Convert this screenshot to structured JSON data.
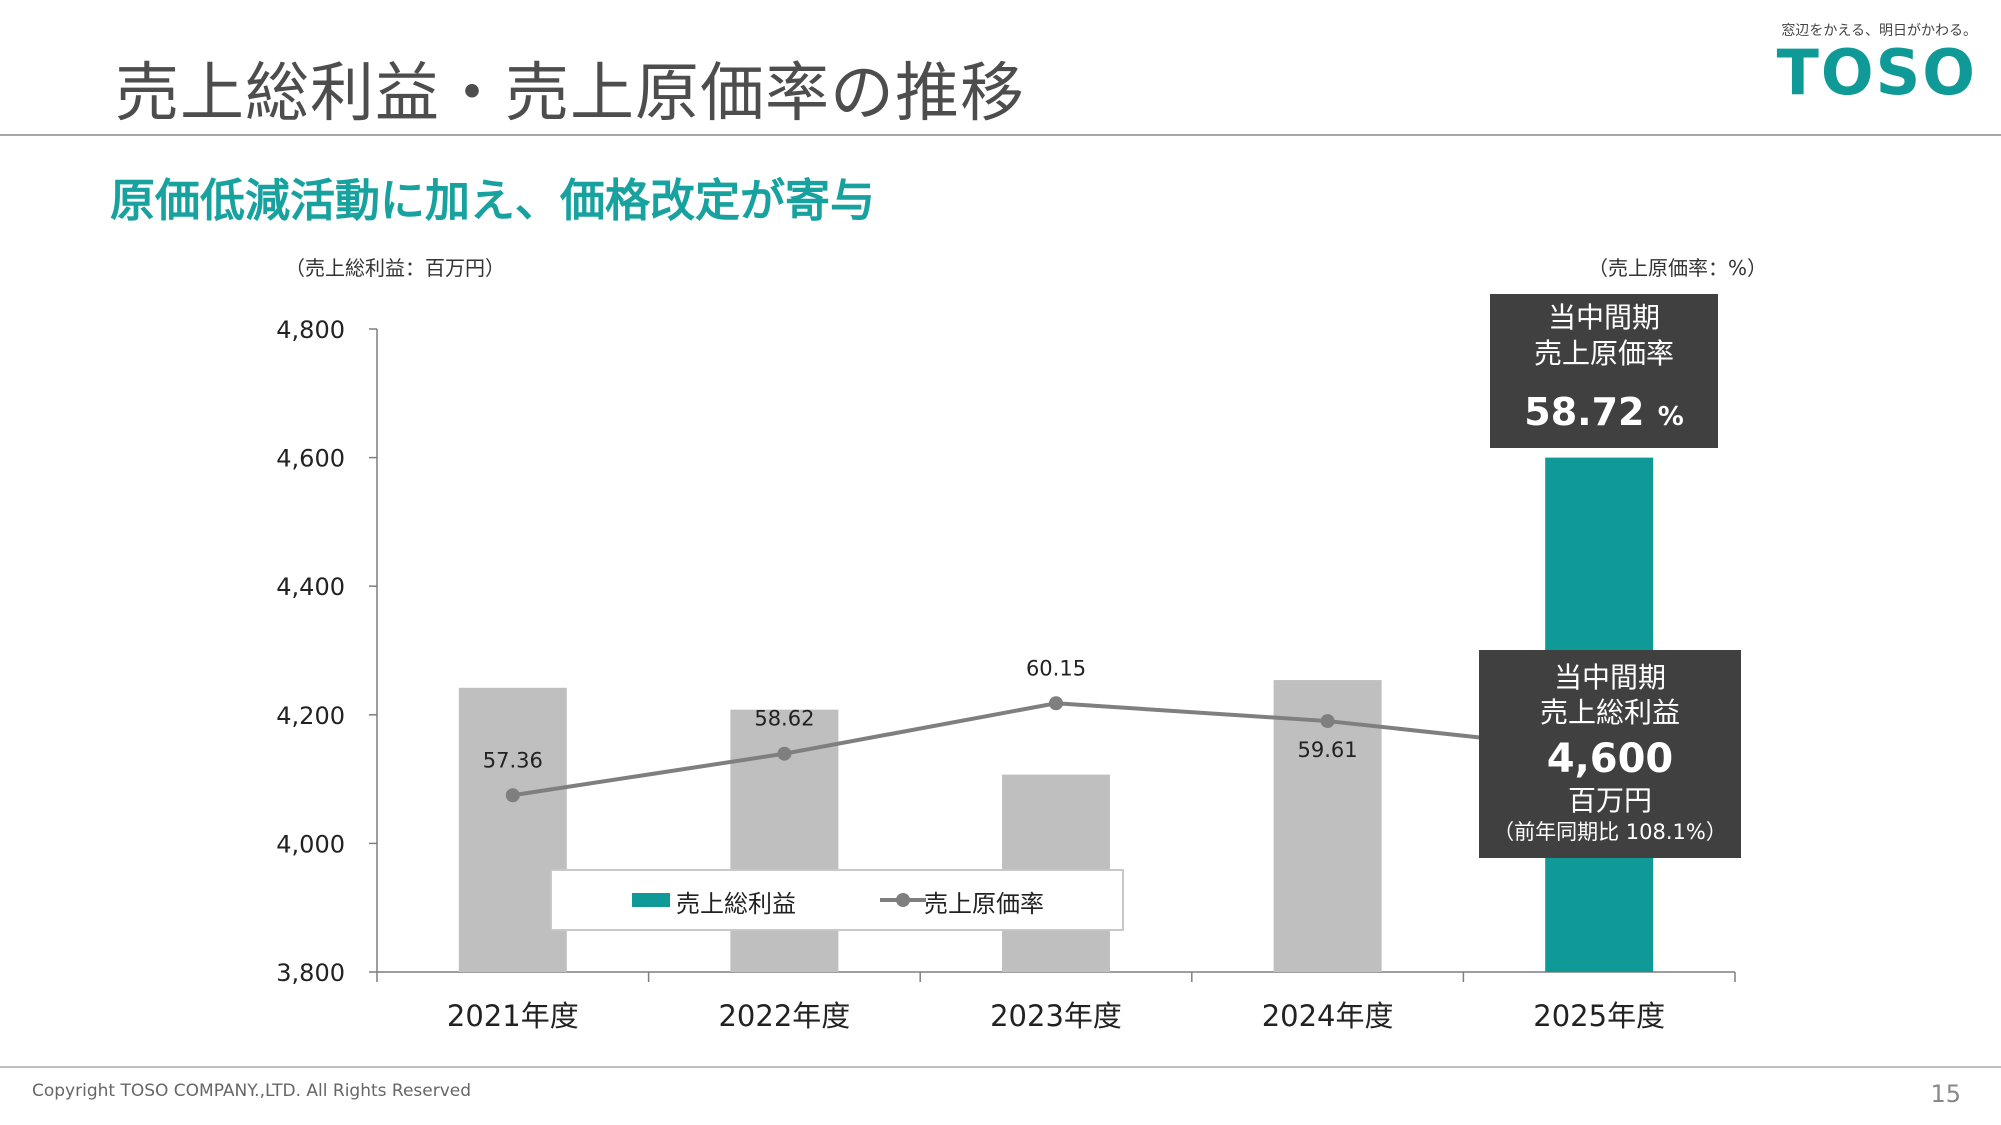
{
  "header": {
    "title": "売上総利益・売上原価率の推移",
    "subtitle": "原価低減活動に加え、価格改定が寄与"
  },
  "logo": {
    "tagline": "窓辺をかえる、明日がかわる。",
    "name": "TOSO"
  },
  "units": {
    "left": "（売上総利益：百万円）",
    "right": "（売上原価率：%）"
  },
  "chart_data": {
    "type": "bar",
    "categories": [
      "2021年度",
      "2022年度",
      "2023年度",
      "2024年度",
      "2025年度"
    ],
    "series": [
      {
        "name": "売上総利益",
        "kind": "bar",
        "axis": "left",
        "values": [
          4242,
          4208,
          4107,
          4254,
          4600
        ],
        "colors": [
          "#bfbfbf",
          "#bfbfbf",
          "#bfbfbf",
          "#bfbfbf",
          "#0f9a98"
        ]
      },
      {
        "name": "売上原価率",
        "kind": "line",
        "axis": "right",
        "values": [
          57.36,
          58.62,
          60.15,
          59.61,
          58.72
        ],
        "labels": [
          "57.36",
          "58.62",
          "60.15",
          "59.61",
          ""
        ],
        "color": "#7f7f7f"
      }
    ],
    "y_left": {
      "min": 3800,
      "max": 4800,
      "ticks": [
        "4,800",
        "4,600",
        "4,400",
        "4,200",
        "4,000",
        "3,800"
      ],
      "tick_values": [
        4800,
        4600,
        4400,
        4200,
        4000,
        3800
      ]
    },
    "y_right": {
      "min": 52.0,
      "max": 71.5
    },
    "grid": false,
    "legend": "bottom-left inside",
    "xlabel": "",
    "ylabel": "売上総利益"
  },
  "callouts": {
    "rate": {
      "line1": "当中間期",
      "line2": "売上原価率",
      "value": "58.72",
      "unit": "%"
    },
    "profit": {
      "line1": "当中間期",
      "line2": "売上総利益",
      "value": "4,600",
      "unit": "百万円",
      "yoy": "（前年同期比 108.1%）"
    }
  },
  "footer": {
    "copyright": "Copyright TOSO COMPANY.,LTD. All Rights Reserved",
    "page": "15"
  }
}
